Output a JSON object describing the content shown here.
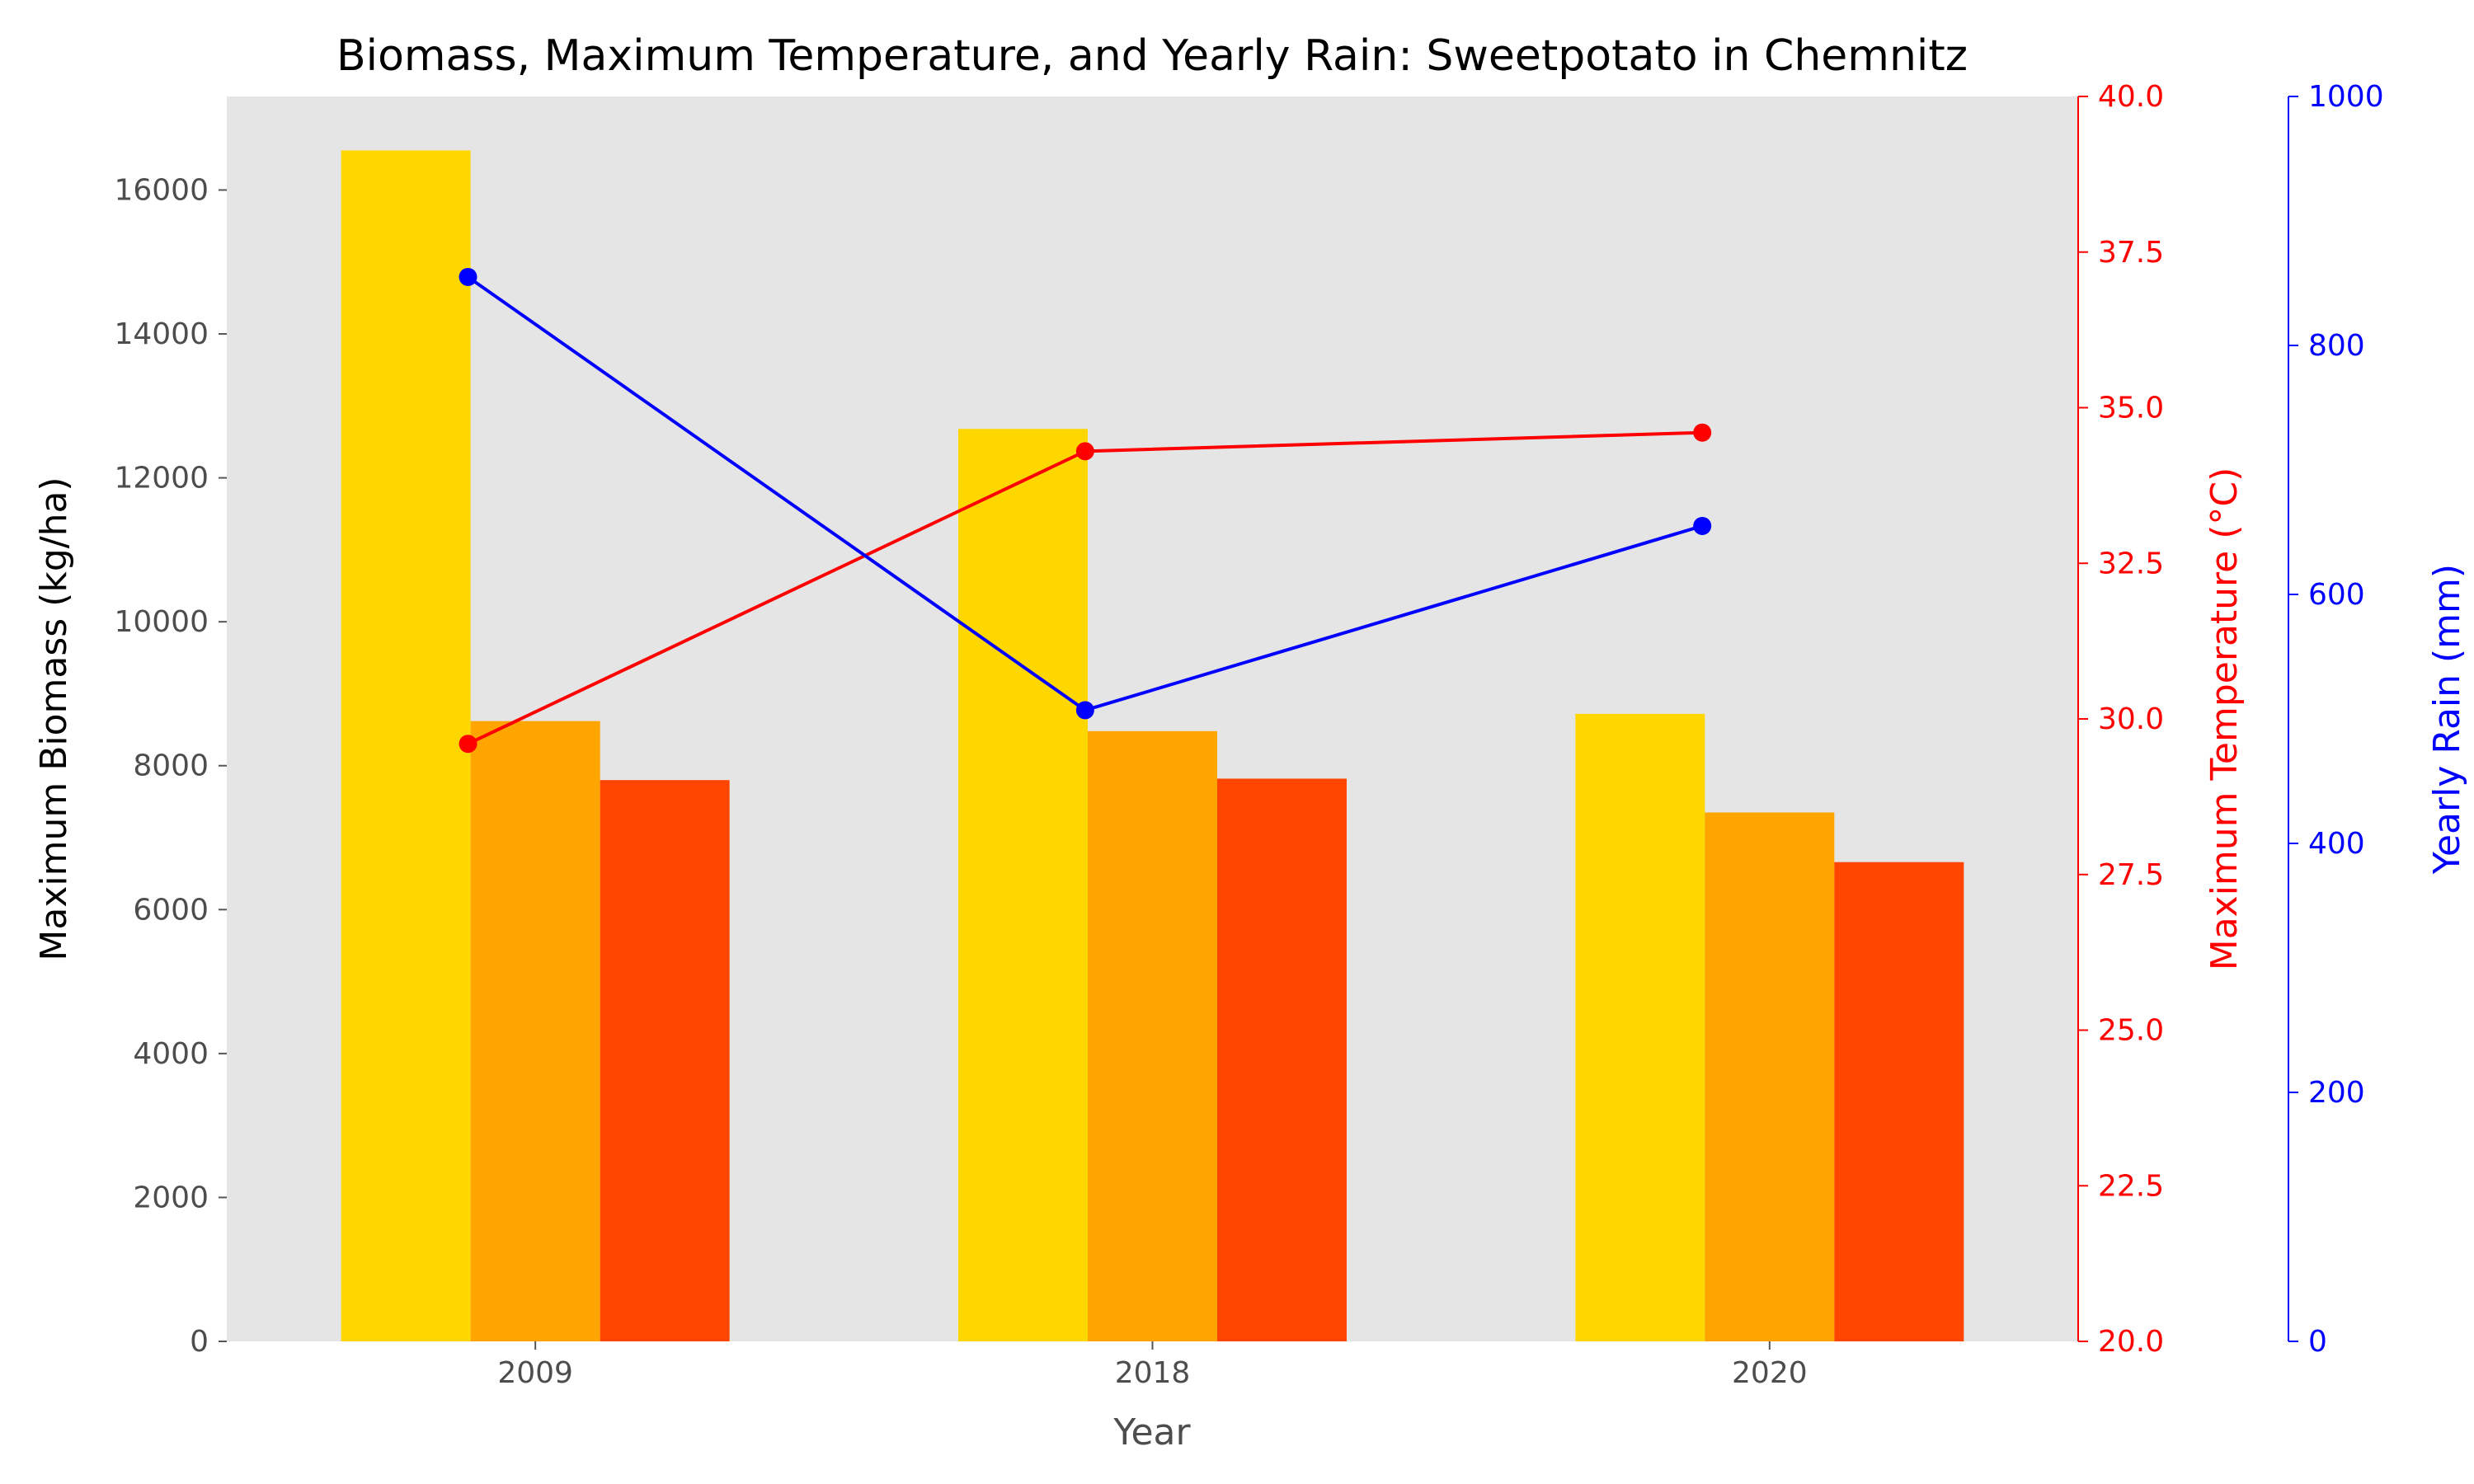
{
  "chart_data": {
    "type": "bar",
    "title": "Biomass, Maximum Temperature, and Yearly Rain: Sweetpotato in Chemnitz",
    "xlabel": "Year",
    "categories": [
      "2009",
      "2018",
      "2020"
    ],
    "grid": false,
    "y_left": {
      "label": "Maximum Biomass (kg/ha)",
      "range": [
        0,
        17300
      ],
      "ticks": [
        0,
        2000,
        4000,
        6000,
        8000,
        10000,
        12000,
        14000,
        16000
      ],
      "tick_labels": [
        "0",
        "2000",
        "4000",
        "6000",
        "8000",
        "10000",
        "12000",
        "14000",
        "16000"
      ]
    },
    "y_temp": {
      "label": "Maximum Temperature (°C)",
      "color": "#ff0000",
      "range": [
        20,
        40
      ],
      "ticks": [
        20,
        22.5,
        25,
        27.5,
        30,
        32.5,
        35,
        37.5,
        40
      ],
      "tick_labels": [
        "20.0",
        "22.5",
        "25.0",
        "27.5",
        "30.0",
        "32.5",
        "35.0",
        "37.5",
        "40.0"
      ]
    },
    "y_rain": {
      "label": "Yearly Rain (mm)",
      "color": "#0000ff",
      "range": [
        0,
        1000
      ],
      "ticks": [
        0,
        200,
        400,
        600,
        800,
        1000
      ],
      "tick_labels": [
        "0",
        "200",
        "400",
        "600",
        "800",
        "1000"
      ]
    },
    "bar_series": [
      {
        "color": "#ffd700",
        "values": [
          16550,
          12680,
          8720
        ]
      },
      {
        "color": "#ffa500",
        "values": [
          8620,
          8480,
          7350
        ]
      },
      {
        "color": "#ff4500",
        "values": [
          7800,
          7820,
          6660
        ]
      }
    ],
    "line_series": [
      {
        "axis": "y_temp",
        "color": "#ff0000",
        "values": [
          29.6,
          34.3,
          34.6
        ]
      },
      {
        "axis": "y_rain",
        "color": "#0000ff",
        "values": [
          855,
          507,
          655
        ]
      }
    ]
  }
}
